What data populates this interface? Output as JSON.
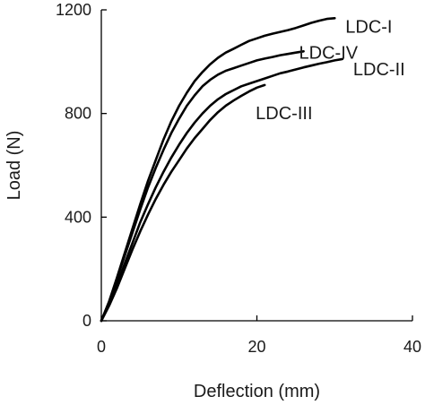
{
  "chart_data": {
    "type": "line",
    "title": "",
    "xlabel": "Deflection (mm)",
    "ylabel": "Load (N)",
    "xlim": [
      0,
      40
    ],
    "ylim": [
      0,
      1200
    ],
    "xticks": [
      0,
      20,
      40
    ],
    "yticks": [
      0,
      400,
      800,
      1200
    ],
    "grid": false,
    "legend": "none (series labeled inline at curve ends)",
    "series": [
      {
        "name": "LDC-I",
        "points": [
          [
            0,
            0
          ],
          [
            1,
            75
          ],
          [
            2,
            165
          ],
          [
            3,
            260
          ],
          [
            4,
            355
          ],
          [
            5,
            450
          ],
          [
            6,
            540
          ],
          [
            7,
            620
          ],
          [
            8,
            700
          ],
          [
            9,
            770
          ],
          [
            10,
            830
          ],
          [
            11,
            880
          ],
          [
            12,
            925
          ],
          [
            13,
            960
          ],
          [
            14,
            990
          ],
          [
            15,
            1015
          ],
          [
            16,
            1035
          ],
          [
            17,
            1050
          ],
          [
            18,
            1065
          ],
          [
            19,
            1080
          ],
          [
            20,
            1090
          ],
          [
            21,
            1100
          ],
          [
            22,
            1108
          ],
          [
            23,
            1115
          ],
          [
            24,
            1122
          ],
          [
            25,
            1130
          ],
          [
            26,
            1140
          ],
          [
            27,
            1150
          ],
          [
            28,
            1158
          ],
          [
            29,
            1165
          ],
          [
            30,
            1168
          ]
        ]
      },
      {
        "name": "LDC-IV",
        "points": [
          [
            0,
            0
          ],
          [
            1,
            72
          ],
          [
            2,
            160
          ],
          [
            3,
            250
          ],
          [
            4,
            340
          ],
          [
            5,
            430
          ],
          [
            6,
            515
          ],
          [
            7,
            590
          ],
          [
            8,
            660
          ],
          [
            9,
            725
          ],
          [
            10,
            780
          ],
          [
            11,
            830
          ],
          [
            12,
            870
          ],
          [
            13,
            905
          ],
          [
            14,
            930
          ],
          [
            15,
            950
          ],
          [
            16,
            965
          ],
          [
            17,
            975
          ],
          [
            18,
            985
          ],
          [
            19,
            995
          ],
          [
            20,
            1005
          ],
          [
            21,
            1012
          ],
          [
            22,
            1018
          ],
          [
            23,
            1025
          ],
          [
            24,
            1030
          ],
          [
            25,
            1035
          ],
          [
            26,
            1040
          ]
        ]
      },
      {
        "name": "LDC-II",
        "points": [
          [
            0,
            0
          ],
          [
            1,
            65
          ],
          [
            2,
            140
          ],
          [
            3,
            220
          ],
          [
            4,
            300
          ],
          [
            5,
            380
          ],
          [
            6,
            450
          ],
          [
            7,
            515
          ],
          [
            8,
            575
          ],
          [
            9,
            630
          ],
          [
            10,
            680
          ],
          [
            11,
            725
          ],
          [
            12,
            765
          ],
          [
            13,
            800
          ],
          [
            14,
            830
          ],
          [
            15,
            855
          ],
          [
            16,
            875
          ],
          [
            17,
            890
          ],
          [
            18,
            905
          ],
          [
            19,
            915
          ],
          [
            20,
            925
          ],
          [
            21,
            935
          ],
          [
            22,
            945
          ],
          [
            23,
            955
          ],
          [
            24,
            962
          ],
          [
            25,
            970
          ],
          [
            26,
            978
          ],
          [
            27,
            985
          ],
          [
            28,
            992
          ],
          [
            29,
            998
          ],
          [
            30,
            1005
          ],
          [
            31,
            1010
          ]
        ]
      },
      {
        "name": "LDC-III",
        "points": [
          [
            0,
            0
          ],
          [
            1,
            58
          ],
          [
            2,
            125
          ],
          [
            3,
            200
          ],
          [
            4,
            275
          ],
          [
            5,
            345
          ],
          [
            6,
            410
          ],
          [
            7,
            470
          ],
          [
            8,
            525
          ],
          [
            9,
            575
          ],
          [
            10,
            620
          ],
          [
            11,
            665
          ],
          [
            12,
            705
          ],
          [
            13,
            740
          ],
          [
            14,
            775
          ],
          [
            15,
            805
          ],
          [
            16,
            830
          ],
          [
            17,
            850
          ],
          [
            18,
            868
          ],
          [
            19,
            885
          ],
          [
            20,
            900
          ],
          [
            21,
            910
          ]
        ]
      }
    ]
  }
}
